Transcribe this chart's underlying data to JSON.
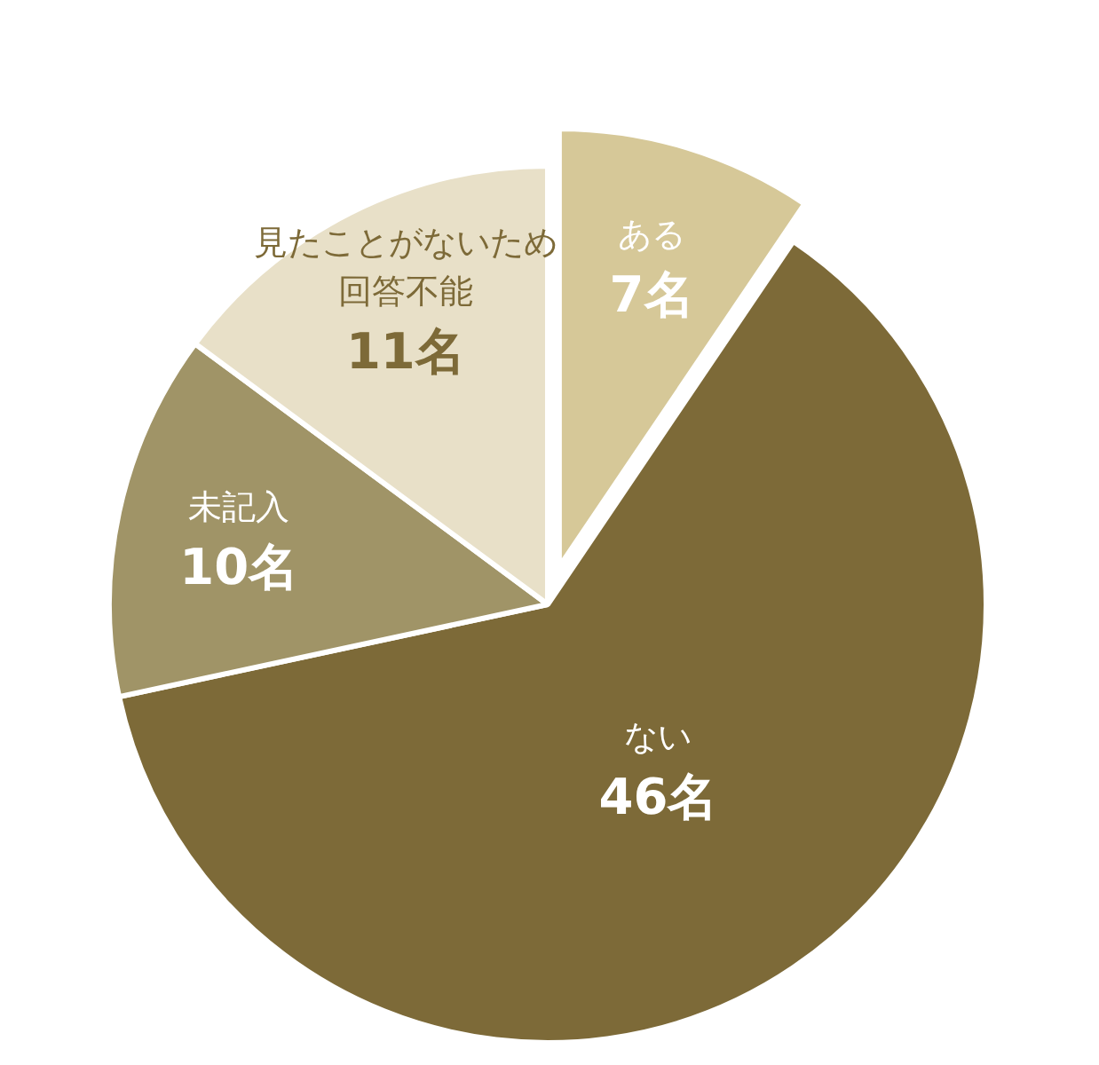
{
  "chart_data": {
    "type": "pie",
    "categories": [
      "ある",
      "ない",
      "未記入",
      "見たことがないため回答不能"
    ],
    "values": [
      7,
      46,
      10,
      11
    ],
    "colors": [
      "#d6c898",
      "#7d6a38",
      "#a09467",
      "#e8e0c8"
    ],
    "value_labels": [
      "7名",
      "46名",
      "10名",
      "11名"
    ]
  }
}
